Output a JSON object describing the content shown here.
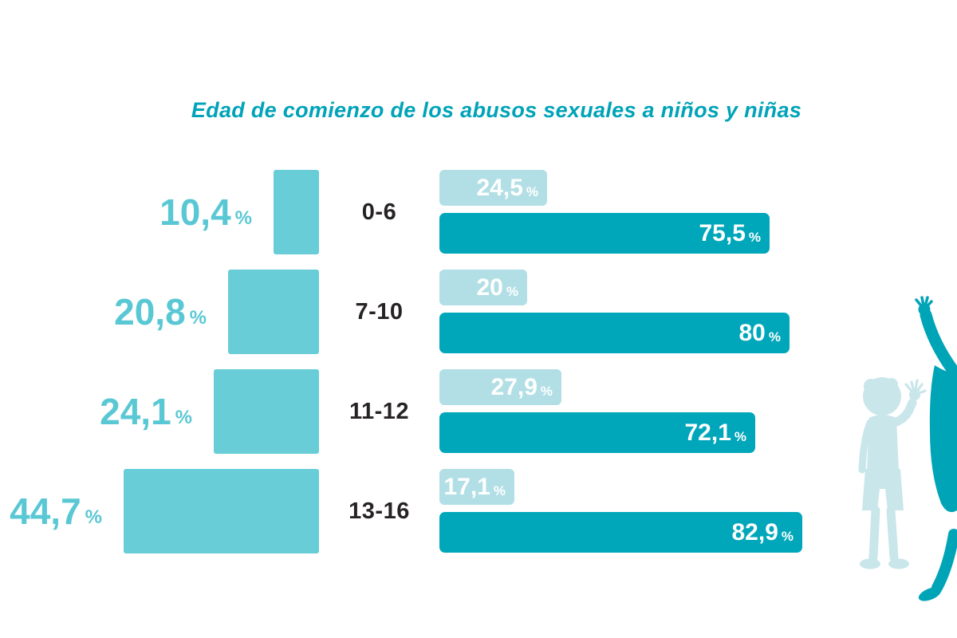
{
  "title": "Edad de comienzo de los abusos sexuales a niños y niñas",
  "percent_sign": "%",
  "colors": {
    "title_teal": "#00a3b8",
    "label_teal": "#5ac8d4",
    "square_teal": "#68cdd7",
    "bar_light": "#b2dfe5",
    "bar_dark": "#00a7ba",
    "age_text": "#272324",
    "bar_text": "#ffffff",
    "silhouette_light": "#c9e6ea",
    "silhouette_dark": "#00a4b7"
  },
  "rows": [
    {
      "age": "0-6",
      "group_pct": {
        "text": "10,4",
        "value": 10.4
      },
      "light": {
        "text": "24,5",
        "value": 24.5
      },
      "dark": {
        "text": "75,5",
        "value": 75.5
      }
    },
    {
      "age": "7-10",
      "group_pct": {
        "text": "20,8",
        "value": 20.8
      },
      "light": {
        "text": "20",
        "value": 20
      },
      "dark": {
        "text": "80",
        "value": 80
      }
    },
    {
      "age": "11-12",
      "group_pct": {
        "text": "24,1",
        "value": 24.1
      },
      "light": {
        "text": "27,9",
        "value": 27.9
      },
      "dark": {
        "text": "72,1",
        "value": 72.1
      }
    },
    {
      "age": "13-16",
      "group_pct": {
        "text": "44,7",
        "value": 44.7
      },
      "light": {
        "text": "17,1",
        "value": 17.1
      },
      "dark": {
        "text": "82,9",
        "value": 82.9
      }
    }
  ],
  "chart_data": {
    "type": "bar",
    "orientation": "horizontal",
    "title": "Edad de comienzo de los abusos sexuales a niños y niñas",
    "categories": [
      "0-6",
      "7-10",
      "11-12",
      "13-16"
    ],
    "series": [
      {
        "name": "porcentaje-grupo-edad-cuadros",
        "values": [
          10.4,
          20.8,
          24.1,
          44.7
        ]
      },
      {
        "name": "barra-clara",
        "values": [
          24.5,
          20,
          27.9,
          17.1
        ]
      },
      {
        "name": "barra-oscura",
        "values": [
          75.5,
          80,
          72.1,
          82.9
        ]
      }
    ],
    "value_suffix": "%",
    "xlim": [
      0,
      100
    ],
    "grid": false,
    "legend": "none"
  }
}
